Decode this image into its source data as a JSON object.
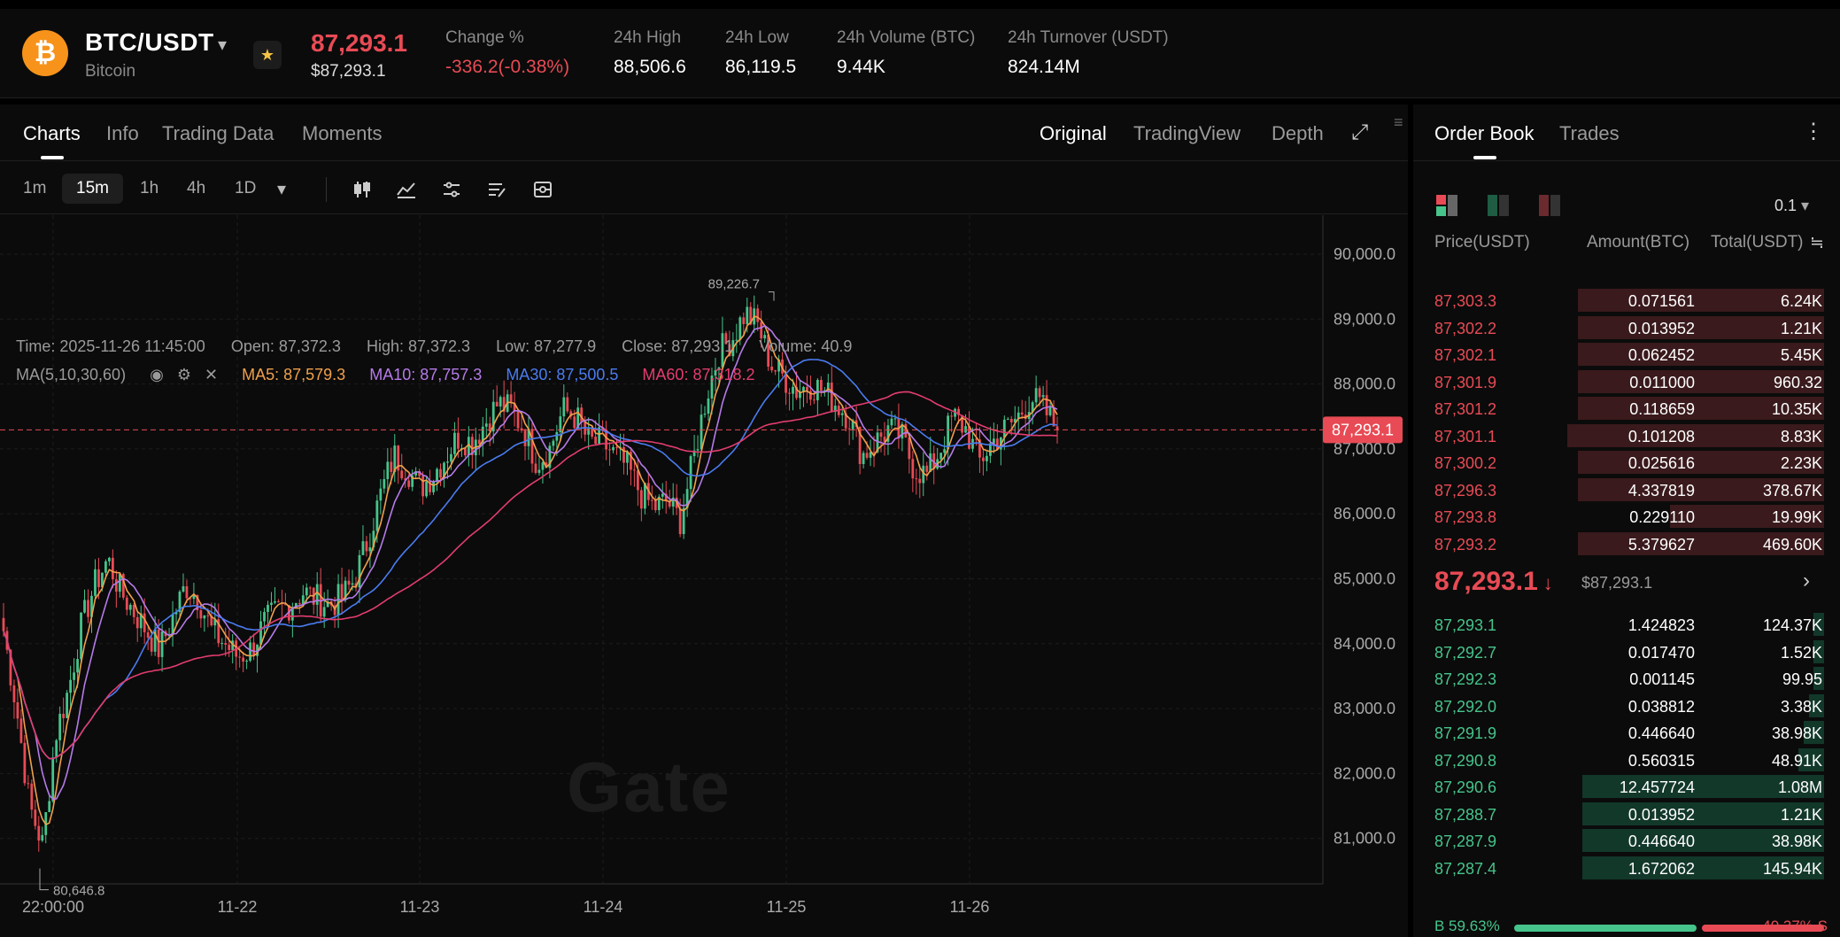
{
  "header": {
    "pair": "BTC/USDT",
    "coin_name": "Bitcoin",
    "coin_symbol": "₿",
    "last_price": "87,293.1",
    "last_price_usd": "$87,293.1",
    "stats": [
      {
        "label": "Change %",
        "value": "-336.2(-0.38%)",
        "negative": true
      },
      {
        "label": "24h High",
        "value": "88,506.6"
      },
      {
        "label": "24h Low",
        "value": "86,119.5"
      },
      {
        "label": "24h Volume (BTC)",
        "value": "9.44K"
      },
      {
        "label": "24h Turnover (USDT)",
        "value": "824.14M"
      }
    ]
  },
  "chart_tabs": {
    "left": [
      "Charts",
      "Info",
      "Trading Data",
      "Moments"
    ],
    "right": [
      "Original",
      "TradingView",
      "Depth"
    ]
  },
  "timeframes": [
    "1m",
    "15m",
    "1h",
    "4h",
    "1D"
  ],
  "active_timeframe": "15m",
  "ohlc": {
    "time": "Time: 2025-11-26 11:45:00",
    "open": "Open: 87,372.3",
    "high": "High: 87,372.3",
    "low": "Low: 87,277.9",
    "close": "Close: 87,293.1",
    "volume": "Volume: 40.9"
  },
  "ma_legend": {
    "label": "MA(5,10,30,60)",
    "ma5": "MA5: 87,579.3",
    "ma10": "MA10: 87,757.3",
    "ma30": "MA30: 87,500.5",
    "ma60": "MA60: 87,318.2"
  },
  "colors": {
    "up": "#46c48b",
    "down": "#e84b55",
    "ma5": "#f0a04b",
    "ma10": "#b57be8",
    "ma30": "#4a7cf0",
    "ma60": "#e23d6f"
  },
  "chart_data": {
    "type": "candlestick",
    "x_ticks": [
      "22:00:00",
      "11-22",
      "11-23",
      "11-24",
      "11-25",
      "11-26"
    ],
    "y_ticks": [
      "90,000.0",
      "89,000.0",
      "88,000.0",
      "87,000.0",
      "86,000.0",
      "85,000.0",
      "84,000.0",
      "83,000.0",
      "82,000.0",
      "81,000.0"
    ],
    "ylim": [
      80300,
      90600
    ],
    "current_price": "87,293.1",
    "current_value": 87293.1,
    "high_marker": "89,226.7",
    "high_value": 89226.7,
    "low_marker": "80,646.8",
    "low_value": 80646.8,
    "close_path": [
      84200,
      83000,
      81500,
      80900,
      82600,
      83300,
      84300,
      84900,
      85300,
      84800,
      84500,
      84200,
      83900,
      84400,
      84900,
      84700,
      84200,
      84000,
      83800,
      83900,
      84300,
      84500,
      84600,
      84800,
      84700,
      84600,
      84700,
      85000,
      85600,
      86300,
      86900,
      86700,
      86400,
      86600,
      86900,
      87200,
      87100,
      87400,
      87700,
      87600,
      87300,
      86800,
      87000,
      87600,
      87500,
      87100,
      87100,
      86900,
      86700,
      86300,
      86100,
      86200,
      85900,
      86800,
      87800,
      88500,
      88700,
      89100,
      88900,
      88300,
      88100,
      87900,
      88000,
      87900,
      87700,
      87500,
      86900,
      87100,
      87300,
      87200,
      86700,
      86600,
      87000,
      87500,
      87300,
      86800,
      87100,
      87300,
      87500,
      87800,
      87600,
      87293
    ]
  },
  "order_book": {
    "tabs": [
      "Order Book",
      "Trades"
    ],
    "precision": "0.1",
    "headers": {
      "price": "Price(USDT)",
      "amount": "Amount(BTC)",
      "total": "Total(USDT)"
    },
    "asks": [
      {
        "price": "87,303.3",
        "amount": "0.071561",
        "total": "6.24K",
        "depth": 0.96
      },
      {
        "price": "87,302.2",
        "amount": "0.013952",
        "total": "1.21K",
        "depth": 0.96
      },
      {
        "price": "87,302.1",
        "amount": "0.062452",
        "total": "5.45K",
        "depth": 0.96
      },
      {
        "price": "87,301.9",
        "amount": "0.011000",
        "total": "960.32",
        "depth": 0.96
      },
      {
        "price": "87,301.2",
        "amount": "0.118659",
        "total": "10.35K",
        "depth": 0.96
      },
      {
        "price": "87,301.1",
        "amount": "0.101208",
        "total": "8.83K",
        "depth": 1.0
      },
      {
        "price": "87,300.2",
        "amount": "0.025616",
        "total": "2.23K",
        "depth": 0.96
      },
      {
        "price": "87,296.3",
        "amount": "4.337819",
        "total": "378.67K",
        "depth": 0.96
      },
      {
        "price": "87,293.8",
        "amount": "0.229110",
        "total": "19.99K",
        "depth": 0.6
      },
      {
        "price": "87,293.2",
        "amount": "5.379627",
        "total": "469.60K",
        "depth": 0.96
      }
    ],
    "mid_price": "87,293.1",
    "mid_usd": "$87,293.1",
    "bids": [
      {
        "price": "87,293.1",
        "amount": "1.424823",
        "total": "124.37K",
        "depth": 0.04
      },
      {
        "price": "87,292.7",
        "amount": "0.017470",
        "total": "1.52K",
        "depth": 0.04
      },
      {
        "price": "87,292.3",
        "amount": "0.001145",
        "total": "99.95",
        "depth": 0.04
      },
      {
        "price": "87,292.0",
        "amount": "0.038812",
        "total": "3.38K",
        "depth": 0.06
      },
      {
        "price": "87,291.9",
        "amount": "0.446640",
        "total": "38.98K",
        "depth": 0.08
      },
      {
        "price": "87,290.8",
        "amount": "0.560315",
        "total": "48.91K",
        "depth": 0.1
      },
      {
        "price": "87,290.6",
        "amount": "12.457724",
        "total": "1.08M",
        "depth": 0.94
      },
      {
        "price": "87,288.7",
        "amount": "0.013952",
        "total": "1.21K",
        "depth": 0.94
      },
      {
        "price": "87,287.9",
        "amount": "0.446640",
        "total": "38.98K",
        "depth": 0.94
      },
      {
        "price": "87,287.4",
        "amount": "1.672062",
        "total": "145.94K",
        "depth": 0.94
      }
    ],
    "buy_ratio": "B 59.63%",
    "sell_ratio": "40.37% S",
    "buy_fraction": 0.5963
  }
}
